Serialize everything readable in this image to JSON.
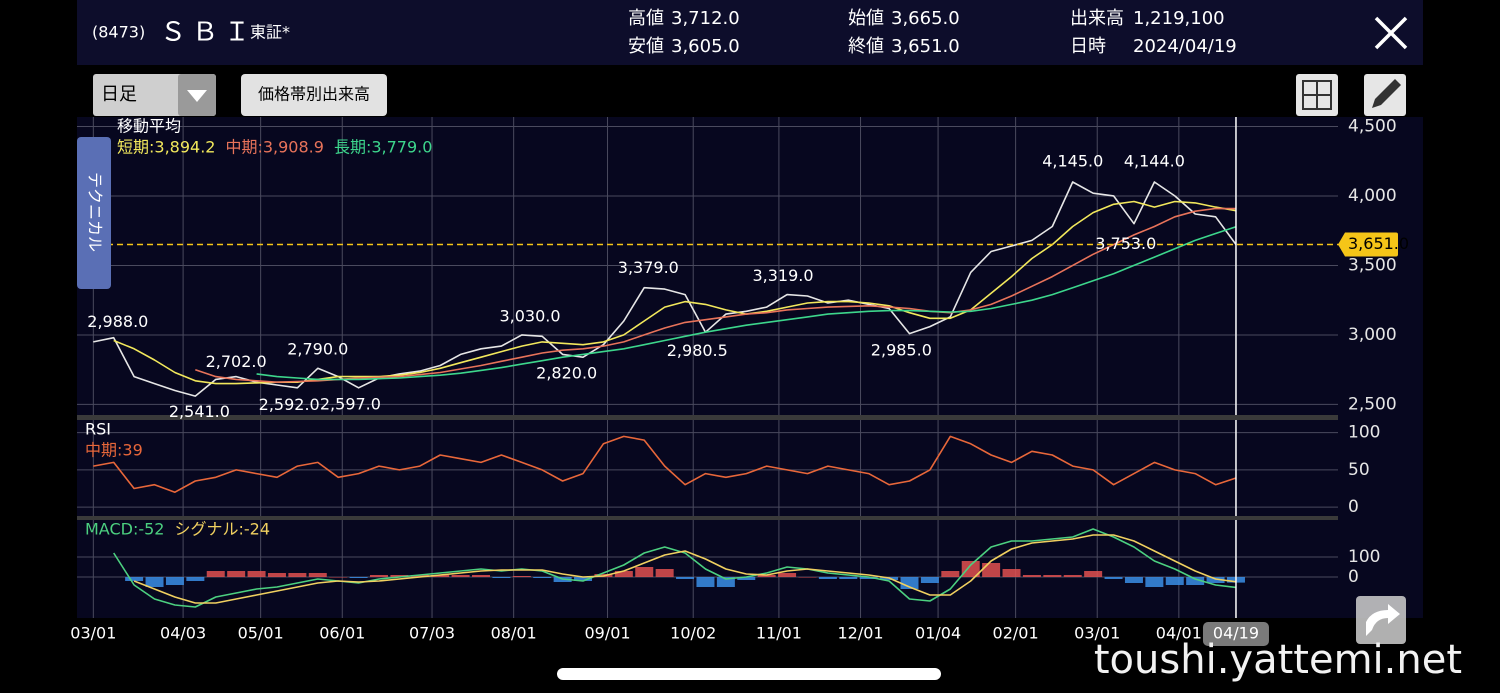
{
  "header": {
    "code": "(8473)",
    "name": "ＳＢＩ",
    "market": "東証*",
    "quotes": [
      {
        "label": "高値",
        "value": "3,712.0"
      },
      {
        "label": "安値",
        "value": "3,605.0"
      },
      {
        "label": "始値",
        "value": "3,665.0"
      },
      {
        "label": "終値",
        "value": "3,651.0"
      },
      {
        "label": "出来高",
        "value": "1,219,100"
      },
      {
        "label": "日時",
        "value": "2024/04/19"
      }
    ]
  },
  "toolbar": {
    "period": "日足",
    "volume_button": "価格帯別出来高",
    "side_tab": "テクニカル"
  },
  "watermark": "toushi.yattemi.net",
  "chart_data": [
    {
      "type": "line",
      "title": "移動平均",
      "x": [
        0,
        5,
        10,
        15,
        20,
        25,
        30,
        35,
        40,
        45,
        50,
        55,
        60,
        65,
        70,
        75,
        80,
        85,
        90,
        95,
        100,
        105,
        110,
        115,
        120,
        125,
        130,
        135,
        140,
        145,
        150,
        155,
        160,
        165,
        170,
        175,
        180,
        185,
        190,
        195,
        200,
        205,
        210,
        215,
        220,
        225,
        230,
        235,
        240,
        245,
        250,
        255,
        260,
        265,
        270,
        275,
        280
      ],
      "xlim": [
        -4,
        305
      ],
      "xticks": [
        {
          "value": 0,
          "label": "03/01"
        },
        {
          "value": 22,
          "label": "04/03"
        },
        {
          "value": 41,
          "label": "05/01"
        },
        {
          "value": 61,
          "label": "06/01"
        },
        {
          "value": 83,
          "label": "07/03"
        },
        {
          "value": 103,
          "label": "08/01"
        },
        {
          "value": 126,
          "label": "09/01"
        },
        {
          "value": 147,
          "label": "10/02"
        },
        {
          "value": 168,
          "label": "11/01"
        },
        {
          "value": 188,
          "label": "12/01"
        },
        {
          "value": 207,
          "label": "01/04"
        },
        {
          "value": 226,
          "label": "02/01"
        },
        {
          "value": 246,
          "label": "03/01"
        },
        {
          "value": 266,
          "label": "04/01"
        },
        {
          "value": 280,
          "label": "04/19",
          "highlight": true
        }
      ],
      "ylim": [
        2424,
        4568
      ],
      "yticks": [
        {
          "value": 2500,
          "label": "2,500"
        },
        {
          "value": 3000,
          "label": "3,000"
        },
        {
          "value": 3500,
          "label": "3,500"
        },
        {
          "value": 4000,
          "label": "4,000"
        },
        {
          "value": 4500,
          "label": "4,500"
        }
      ],
      "grid": true,
      "series": [
        {
          "color": "#e6e6e6",
          "values": [
            2950,
            2980,
            2700,
            2650,
            2600,
            2560,
            2680,
            2700,
            2660,
            2640,
            2620,
            2760,
            2700,
            2620,
            2690,
            2720,
            2740,
            2780,
            2860,
            2900,
            2920,
            3000,
            2990,
            2860,
            2840,
            2930,
            3100,
            3340,
            3330,
            3290,
            3020,
            3150,
            3170,
            3200,
            3290,
            3280,
            3230,
            3250,
            3220,
            3190,
            3010,
            3060,
            3130,
            3450,
            3600,
            3640,
            3680,
            3780,
            4100,
            4020,
            4000,
            3800,
            4100,
            4000,
            3870,
            3850,
            3651
          ]
        },
        {
          "name": "短期:3,894.2",
          "color": "#f2e85c",
          "values": [
            null,
            2960,
            2900,
            2820,
            2730,
            2670,
            2650,
            2650,
            2655,
            2660,
            2660,
            2680,
            2700,
            2700,
            2700,
            2710,
            2730,
            2760,
            2800,
            2840,
            2880,
            2920,
            2950,
            2940,
            2930,
            2950,
            3000,
            3100,
            3200,
            3240,
            3220,
            3180,
            3150,
            3170,
            3200,
            3230,
            3240,
            3240,
            3230,
            3210,
            3160,
            3120,
            3120,
            3180,
            3300,
            3420,
            3550,
            3650,
            3780,
            3880,
            3940,
            3960,
            3920,
            3960,
            3950,
            3920,
            3894
          ]
        },
        {
          "name": "中期:3,908.9",
          "color": "#e8735a",
          "values": [
            null,
            null,
            null,
            null,
            null,
            2750,
            2700,
            2680,
            2670,
            2660,
            2665,
            2670,
            2680,
            2690,
            2695,
            2700,
            2715,
            2730,
            2755,
            2780,
            2810,
            2840,
            2870,
            2890,
            2900,
            2920,
            2950,
            3000,
            3050,
            3090,
            3110,
            3130,
            3150,
            3160,
            3180,
            3190,
            3200,
            3205,
            3210,
            3200,
            3190,
            3170,
            3160,
            3180,
            3220,
            3280,
            3350,
            3420,
            3500,
            3580,
            3650,
            3720,
            3780,
            3850,
            3890,
            3910,
            3909
          ]
        },
        {
          "name": "長期:3,779.0",
          "color": "#3dd68c",
          "values": [
            null,
            null,
            null,
            null,
            null,
            null,
            null,
            null,
            2720,
            2700,
            2690,
            2680,
            2680,
            2680,
            2685,
            2690,
            2700,
            2710,
            2725,
            2745,
            2765,
            2790,
            2815,
            2840,
            2860,
            2880,
            2900,
            2930,
            2960,
            2990,
            3020,
            3045,
            3070,
            3090,
            3110,
            3130,
            3150,
            3160,
            3170,
            3175,
            3175,
            3170,
            3165,
            3170,
            3190,
            3220,
            3250,
            3290,
            3340,
            3390,
            3440,
            3500,
            3560,
            3620,
            3680,
            3730,
            3779
          ]
        }
      ],
      "annotations": [
        {
          "x": 6,
          "value": 2988,
          "label": "2,988.0",
          "position": "above"
        },
        {
          "x": 26,
          "value": 2541,
          "label": "2,541.0",
          "position": "below"
        },
        {
          "x": 35,
          "value": 2702,
          "label": "2,702.0",
          "position": "above"
        },
        {
          "x": 48,
          "value": 2592,
          "label": "2,592.0",
          "position": "below"
        },
        {
          "x": 55,
          "value": 2790,
          "label": "2,790.0",
          "position": "above"
        },
        {
          "x": 63,
          "value": 2597,
          "label": "2,597.0",
          "position": "below"
        },
        {
          "x": 107,
          "value": 3030,
          "label": "3,030.0",
          "position": "above"
        },
        {
          "x": 116,
          "value": 2820,
          "label": "2,820.0",
          "position": "below"
        },
        {
          "x": 136,
          "value": 3379,
          "label": "3,379.0",
          "position": "above"
        },
        {
          "x": 148,
          "value": 2980.5,
          "label": "2,980.5",
          "position": "below"
        },
        {
          "x": 169,
          "value": 3319,
          "label": "3,319.0",
          "position": "above"
        },
        {
          "x": 198,
          "value": 2985,
          "label": "2,985.0",
          "position": "below"
        },
        {
          "x": 240,
          "value": 4145,
          "label": "4,145.0",
          "position": "above"
        },
        {
          "x": 260,
          "value": 4144,
          "label": "4,144.0",
          "position": "above"
        },
        {
          "x": 253,
          "value": 3753,
          "label": "3,753.0",
          "position": "below"
        }
      ],
      "current": {
        "value": 3651,
        "label": "3,651.0",
        "color": "#f5c518"
      }
    },
    {
      "type": "line",
      "title": "RSI",
      "x": [
        0,
        5,
        10,
        15,
        20,
        25,
        30,
        35,
        40,
        45,
        50,
        55,
        60,
        65,
        70,
        75,
        80,
        85,
        90,
        95,
        100,
        105,
        110,
        115,
        120,
        125,
        130,
        135,
        140,
        145,
        150,
        155,
        160,
        165,
        170,
        175,
        180,
        185,
        190,
        195,
        200,
        205,
        210,
        215,
        220,
        225,
        230,
        235,
        240,
        245,
        250,
        255,
        260,
        265,
        270,
        275,
        280
      ],
      "ylim": [
        -12,
        117
      ],
      "yticks": [
        0,
        50,
        100
      ],
      "grid": true,
      "series": [
        {
          "name": "中期:39",
          "color": "#e8673a",
          "values": [
            55,
            60,
            25,
            30,
            20,
            35,
            40,
            50,
            45,
            40,
            55,
            60,
            40,
            45,
            55,
            50,
            55,
            70,
            65,
            60,
            70,
            60,
            50,
            35,
            45,
            85,
            95,
            90,
            55,
            30,
            45,
            40,
            45,
            55,
            50,
            45,
            55,
            50,
            45,
            30,
            35,
            50,
            95,
            85,
            70,
            60,
            75,
            70,
            55,
            50,
            30,
            45,
            60,
            50,
            45,
            30,
            39
          ]
        }
      ]
    },
    {
      "type": "line",
      "x": [
        0,
        5,
        10,
        15,
        20,
        25,
        30,
        35,
        40,
        45,
        50,
        55,
        60,
        65,
        70,
        75,
        80,
        85,
        90,
        95,
        100,
        105,
        110,
        115,
        120,
        125,
        130,
        135,
        140,
        145,
        150,
        155,
        160,
        165,
        170,
        175,
        180,
        185,
        190,
        195,
        200,
        205,
        210,
        215,
        220,
        225,
        230,
        235,
        240,
        245,
        250,
        255,
        260,
        265,
        270,
        275,
        280
      ],
      "ylim": [
        -205,
        285
      ],
      "yticks": [
        0,
        100
      ],
      "grid": true,
      "series": [
        {
          "name": "MACD:-52",
          "color": "#4cd080",
          "values": [
            null,
            120,
            -40,
            -110,
            -140,
            -150,
            -100,
            -80,
            -60,
            -50,
            -30,
            -10,
            -20,
            -30,
            -10,
            0,
            10,
            20,
            30,
            40,
            30,
            40,
            30,
            -10,
            -20,
            20,
            60,
            120,
            150,
            120,
            40,
            -10,
            0,
            20,
            50,
            40,
            20,
            10,
            0,
            -20,
            -110,
            -120,
            -60,
            60,
            150,
            180,
            180,
            190,
            200,
            240,
            200,
            150,
            80,
            40,
            -10,
            -40,
            -52
          ]
        },
        {
          "name": "シグナル:-24",
          "color": "#f0d060",
          "values": [
            null,
            null,
            -20,
            -60,
            -100,
            -130,
            -130,
            -110,
            -90,
            -70,
            -50,
            -30,
            -20,
            -25,
            -20,
            -10,
            0,
            10,
            20,
            30,
            35,
            35,
            35,
            15,
            0,
            5,
            30,
            70,
            110,
            130,
            90,
            40,
            15,
            10,
            30,
            40,
            30,
            20,
            10,
            -5,
            -50,
            -90,
            -90,
            -20,
            80,
            140,
            170,
            180,
            190,
            210,
            210,
            180,
            130,
            80,
            30,
            -10,
            -24
          ]
        }
      ],
      "histogram": {
        "positive_color": "#e05050",
        "negative_color": "#3a8ee6",
        "values": [
          null,
          null,
          -20,
          -50,
          -40,
          -20,
          30,
          30,
          30,
          20,
          20,
          20,
          0,
          -5,
          10,
          10,
          10,
          10,
          10,
          10,
          -5,
          5,
          -5,
          -25,
          -20,
          15,
          30,
          50,
          40,
          -10,
          -50,
          -50,
          -15,
          10,
          20,
          0,
          -10,
          -10,
          -10,
          -15,
          -60,
          -30,
          30,
          80,
          70,
          40,
          10,
          10,
          10,
          30,
          -10,
          -30,
          -50,
          -40,
          -40,
          -30,
          -28
        ]
      }
    }
  ]
}
